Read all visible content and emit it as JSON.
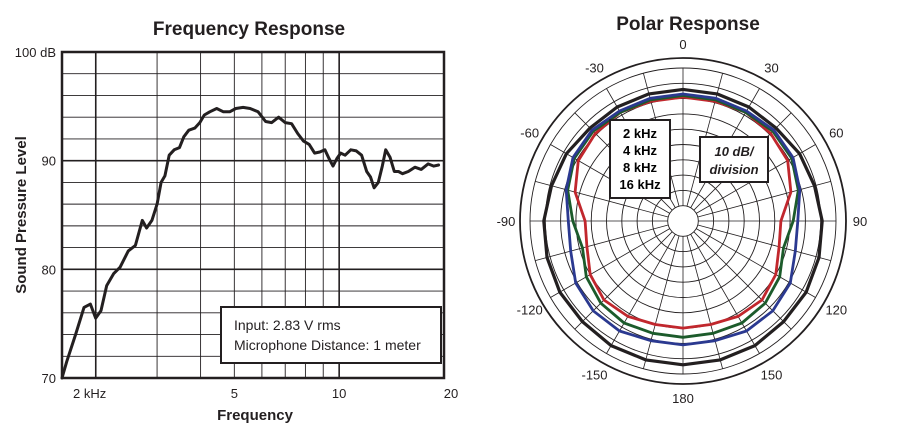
{
  "chart_data": [
    {
      "type": "line",
      "title": "Frequency Response",
      "xlabel": "Frequency",
      "ylabel": "Sound Pressure Level",
      "xscale": "log",
      "xlim_khz": [
        1.6,
        20
      ],
      "ylim": [
        70,
        100
      ],
      "y_ticks": [
        {
          "value": 70,
          "label": "70"
        },
        {
          "value": 80,
          "label": "80"
        },
        {
          "value": 90,
          "label": "90"
        },
        {
          "value": 100,
          "label": "100 dB"
        }
      ],
      "x_ticks": [
        {
          "value": 2,
          "label": "2 kHz"
        },
        {
          "value": 5,
          "label": "5"
        },
        {
          "value": 10,
          "label": "10"
        },
        {
          "value": 20,
          "label": "20"
        }
      ],
      "grid": true,
      "annotation": [
        "Input: 2.83 V rms",
        "Microphone Distance: 1 meter"
      ],
      "series": [
        {
          "name": "SPL",
          "color": "#231f20",
          "x": [
            1.6,
            1.65,
            1.75,
            1.85,
            1.93,
            2.0,
            2.07,
            2.15,
            2.25,
            2.35,
            2.48,
            2.6,
            2.72,
            2.8,
            2.9,
            3.0,
            3.08,
            3.16,
            3.25,
            3.36,
            3.48,
            3.58,
            3.7,
            3.85,
            3.98,
            4.1,
            4.25,
            4.45,
            4.65,
            4.85,
            5.05,
            5.3,
            5.55,
            5.85,
            6.15,
            6.4,
            6.7,
            7.0,
            7.3,
            7.6,
            7.9,
            8.2,
            8.5,
            8.8,
            9.1,
            9.35,
            9.6,
            9.85,
            10.1,
            10.4,
            10.8,
            11.2,
            11.6,
            12.0,
            12.3,
            12.6,
            12.95,
            13.3,
            13.6,
            14.0,
            14.4,
            14.8,
            15.2,
            15.8,
            16.5,
            17.2,
            18.0,
            18.7,
            19.3
          ],
          "values": [
            70.0,
            71.5,
            74.0,
            76.5,
            76.8,
            75.5,
            76.2,
            78.5,
            79.6,
            80.2,
            81.7,
            82.2,
            84.5,
            83.8,
            84.5,
            86.0,
            88.0,
            88.6,
            90.5,
            91.0,
            91.2,
            92.2,
            92.8,
            93.0,
            93.5,
            94.2,
            94.5,
            94.8,
            94.5,
            94.5,
            94.8,
            94.9,
            94.8,
            94.5,
            93.6,
            93.5,
            94.0,
            93.5,
            93.4,
            92.5,
            91.8,
            91.5,
            90.7,
            90.8,
            91.0,
            90.2,
            89.5,
            90.2,
            90.7,
            90.5,
            91.0,
            90.9,
            90.5,
            89.0,
            88.5,
            87.5,
            88.0,
            89.5,
            91.0,
            90.3,
            89.0,
            89.0,
            88.8,
            89.0,
            89.4,
            89.2,
            89.7,
            89.5,
            89.6
          ]
        }
      ]
    },
    {
      "type": "polar",
      "title": "Polar Response",
      "radial_unit_label": [
        "10 dB/",
        "division"
      ],
      "angle_labels": [
        {
          "deg": 0,
          "label": "0"
        },
        {
          "deg": 30,
          "label": "30"
        },
        {
          "deg": 60,
          "label": "60"
        },
        {
          "deg": 90,
          "label": "90"
        },
        {
          "deg": 120,
          "label": "120"
        },
        {
          "deg": 150,
          "label": "150"
        },
        {
          "deg": 180,
          "label": "180"
        },
        {
          "deg": -150,
          "label": "-150"
        },
        {
          "deg": -120,
          "label": "-120"
        },
        {
          "deg": -90,
          "label": "-90"
        },
        {
          "deg": -60,
          "label": "-60"
        },
        {
          "deg": -30,
          "label": "-30"
        }
      ],
      "radial_divisions": 11,
      "angles_deg": [
        0,
        15,
        30,
        45,
        60,
        75,
        90,
        105,
        120,
        135,
        150,
        165,
        180,
        195,
        210,
        225,
        240,
        255,
        270,
        285,
        300,
        315,
        330,
        345
      ],
      "series": [
        {
          "name": "2 kHz",
          "color": "#231f20",
          "level_divisions": [
            8.6,
            8.6,
            8.6,
            8.6,
            8.8,
            8.9,
            9.1,
            9.2,
            9.3,
            9.3,
            9.4,
            9.4,
            9.4,
            9.4,
            9.4,
            9.3,
            9.3,
            9.2,
            9.1,
            8.9,
            8.8,
            8.6,
            8.6,
            8.6
          ]
        },
        {
          "name": "4 kHz",
          "color": "#2b3990",
          "level_divisions": [
            8.3,
            8.3,
            8.3,
            8.4,
            8.3,
            7.9,
            7.5,
            7.6,
            8.1,
            8.3,
            8.3,
            8.1,
            8.1,
            8.1,
            8.3,
            8.3,
            8.1,
            7.6,
            7.5,
            7.9,
            8.3,
            8.4,
            8.3,
            8.3
          ]
        },
        {
          "name": "8 kHz",
          "color": "#1c5b2b",
          "level_divisions": [
            8.2,
            8.2,
            8.2,
            8.3,
            8.2,
            7.8,
            7.2,
            6.8,
            7.3,
            7.6,
            7.7,
            7.6,
            7.6,
            7.6,
            7.7,
            7.6,
            7.3,
            6.8,
            7.2,
            7.8,
            8.2,
            8.3,
            8.2,
            8.2
          ]
        },
        {
          "name": "16 kHz",
          "color": "#c1272d",
          "level_divisions": [
            8.1,
            8.1,
            8.2,
            8.1,
            7.9,
            7.3,
            6.4,
            6.5,
            7.0,
            7.3,
            7.2,
            7.0,
            7.0,
            7.0,
            7.2,
            7.3,
            7.0,
            6.5,
            6.4,
            7.3,
            7.9,
            8.1,
            8.2,
            8.1
          ]
        }
      ]
    }
  ]
}
